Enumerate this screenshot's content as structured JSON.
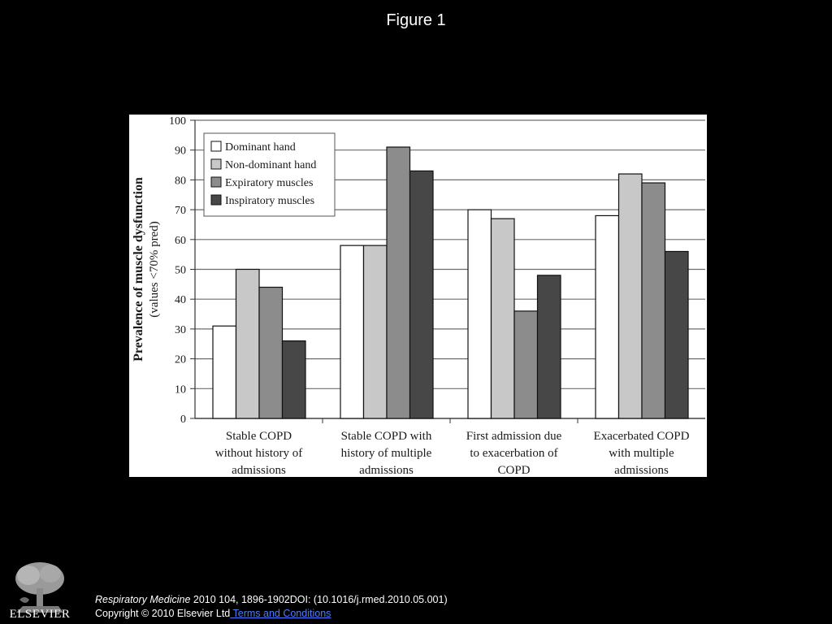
{
  "slide": {
    "title": "Figure 1"
  },
  "footer": {
    "journal": "Respiratory Medicine",
    "citation_rest": " 2010 104, 1896-1902DOI: (10.1016/j.rmed.2010.05.001)",
    "copyright": "Copyright © 2010 Elsevier Ltd",
    "terms_link": " Terms and Conditions",
    "logo_text": "ELSEVIER"
  },
  "colors": {
    "Dominant hand": "#ffffff",
    "Non-dominant hand": "#c8c8c8",
    "Expiratory muscles": "#8c8c8c",
    "Inspiratory muscles": "#474747"
  },
  "chart_data": {
    "type": "bar",
    "title": "",
    "ylabel_line1": "Prevalence of muscle dysfunction",
    "ylabel_line2": "(values <70% pred)",
    "xlabel": "",
    "ylim": [
      0,
      100
    ],
    "yticks": [
      0,
      10,
      20,
      30,
      40,
      50,
      60,
      70,
      80,
      90,
      100
    ],
    "grid": true,
    "legend_position": "top-left",
    "categories": [
      [
        "Stable COPD",
        "without history of",
        "admissions"
      ],
      [
        "Stable COPD with",
        "history of multiple",
        "admissions"
      ],
      [
        "First admission due",
        "to exacerbation of",
        "COPD"
      ],
      [
        "Exacerbated COPD",
        "with multiple",
        "admissions"
      ]
    ],
    "series": [
      {
        "name": "Dominant hand",
        "values": [
          31,
          58,
          70,
          68
        ]
      },
      {
        "name": "Non-dominant hand",
        "values": [
          50,
          58,
          67,
          82
        ]
      },
      {
        "name": "Expiratory muscles",
        "values": [
          44,
          91,
          36,
          79
        ]
      },
      {
        "name": "Inspiratory muscles",
        "values": [
          26,
          83,
          48,
          56
        ]
      }
    ]
  }
}
